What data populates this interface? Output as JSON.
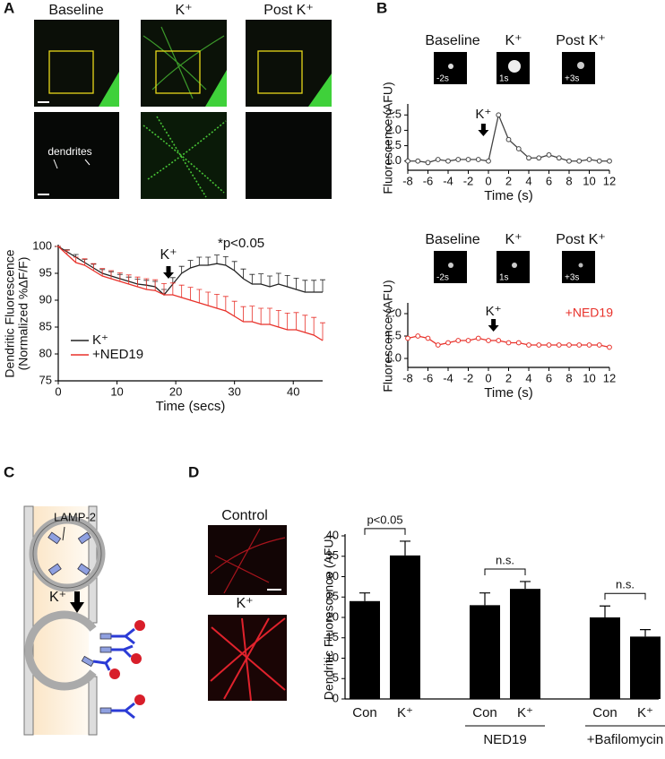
{
  "panels": [
    "A",
    "B",
    "C",
    "D"
  ],
  "panel_a_images": {
    "labels": [
      "Baseline",
      "K⁺",
      "Post K⁺"
    ],
    "annotation": "dendrites"
  },
  "panel_b_images": [
    {
      "labels": [
        "Baseline",
        "K⁺",
        "Post K⁺"
      ],
      "times": [
        "-2s",
        "1s",
        "+3s"
      ]
    },
    {
      "labels": [
        "Baseline",
        "K⁺",
        "Post K⁺"
      ],
      "times": [
        "-2s",
        "1s",
        "+3s"
      ]
    }
  ],
  "panel_c": {
    "labels": [
      "LAMP-2",
      "K⁺"
    ]
  },
  "panel_d_images": {
    "labels": [
      "Control",
      "K⁺"
    ]
  },
  "chart_data": [
    {
      "type": "line",
      "xlabel": "Time (secs)",
      "ylabel": [
        "Dendritic Fluorescence",
        "(Normalized %ΔF/F)"
      ],
      "x": [
        0,
        1.5,
        3,
        4.5,
        6,
        7.5,
        9,
        10.5,
        12,
        13.5,
        15,
        16.5,
        18,
        19.5,
        21,
        22.5,
        24,
        25.5,
        27,
        28.5,
        30,
        31.5,
        33,
        34.5,
        36,
        37.5,
        39,
        40.5,
        42,
        43.5,
        45
      ],
      "series": [
        {
          "name": "K⁺",
          "color": "#222222",
          "values": [
            100,
            99,
            98,
            97,
            96,
            95,
            94.5,
            94,
            93.5,
            93,
            92.8,
            92.5,
            91,
            93,
            95,
            96,
            96.5,
            96.5,
            96.8,
            96.5,
            95.5,
            94,
            93,
            93,
            92.5,
            93,
            92.5,
            92,
            91.5,
            91.5,
            91.5
          ],
          "errors": [
            0,
            0.4,
            0.5,
            0.6,
            0.7,
            0.7,
            0.8,
            0.8,
            0.8,
            0.9,
            0.9,
            1,
            1,
            1.2,
            1.3,
            1.4,
            1.5,
            1.5,
            1.6,
            1.6,
            1.7,
            1.8,
            1.8,
            1.9,
            2,
            2,
            2.1,
            2.1,
            2.2,
            2.2,
            2.3
          ]
        },
        {
          "name": "+NED19",
          "color": "#e8312a",
          "values": [
            100,
            98.5,
            97,
            96.5,
            95.5,
            94.5,
            94,
            93.5,
            93,
            92.5,
            92,
            91.8,
            91,
            91,
            90.5,
            90,
            89.5,
            89,
            88.5,
            88,
            87,
            86,
            86,
            85.5,
            85.5,
            85,
            84.5,
            84.5,
            84,
            83.5,
            82.5
          ],
          "errors": [
            0,
            0.8,
            1,
            1.2,
            1.3,
            1.4,
            1.5,
            1.6,
            1.7,
            1.8,
            2,
            2,
            2.1,
            2.2,
            2.3,
            2.4,
            2.5,
            2.5,
            2.6,
            2.7,
            2.8,
            2.8,
            2.9,
            3,
            3,
            3.1,
            3.1,
            3.2,
            3.2,
            3.3,
            3.3
          ]
        }
      ],
      "xlim": [
        0,
        45
      ],
      "xticks": [
        0,
        10,
        20,
        30,
        40
      ],
      "ylim": [
        75,
        100
      ],
      "yticks": [
        75,
        80,
        85,
        90,
        95,
        100
      ],
      "legend": "lower-left",
      "annotations": [
        "K⁺",
        "*p<0.05"
      ]
    },
    {
      "type": "line",
      "xlabel": "Time (s)",
      "ylabel": [
        "Fluorescence (AFU)"
      ],
      "x": [
        -8,
        -7,
        -6,
        -5,
        -4,
        -3,
        -2,
        -1,
        0,
        1,
        2,
        3,
        4,
        5,
        6,
        7,
        8,
        9,
        10,
        11,
        12
      ],
      "series": [
        {
          "color": "#444444",
          "values": [
            1.0,
            1.0,
            0.95,
            1.05,
            1.0,
            1.05,
            1.05,
            1.05,
            1.0,
            2.5,
            1.7,
            1.4,
            1.1,
            1.1,
            1.2,
            1.1,
            1.0,
            1.0,
            1.05,
            1.0,
            1.0
          ]
        }
      ],
      "marker": "circle",
      "xlim": [
        -8,
        12
      ],
      "xticks": [
        -8,
        -6,
        -4,
        -2,
        0,
        2,
        4,
        6,
        8,
        10,
        12
      ],
      "ylim": [
        0.7,
        2.8
      ],
      "yticks": [
        {
          "value": 1,
          "label": "1.0"
        },
        {
          "value": 1.5,
          "label": "1.5"
        },
        {
          "value": 2,
          "label": "2.0"
        },
        {
          "value": 2.5,
          "label": "2.5"
        }
      ],
      "annotations": [
        "K⁺"
      ]
    },
    {
      "type": "line",
      "xlabel": "Time (s)",
      "ylabel": [
        "Fluorescence (AFU)"
      ],
      "x": [
        -8,
        -7,
        -6,
        -5,
        -4,
        -3,
        -2,
        -1,
        0,
        1,
        2,
        3,
        4,
        5,
        6,
        7,
        8,
        9,
        10,
        11,
        12
      ],
      "series": [
        {
          "color": "#e8312a",
          "values": [
            1.45,
            1.5,
            1.45,
            1.3,
            1.35,
            1.4,
            1.4,
            1.45,
            1.4,
            1.4,
            1.35,
            1.35,
            1.3,
            1.3,
            1.3,
            1.3,
            1.3,
            1.3,
            1.3,
            1.3,
            1.25
          ]
        }
      ],
      "marker": "circle",
      "xlim": [
        -8,
        12
      ],
      "xticks": [
        -8,
        -6,
        -4,
        -2,
        0,
        2,
        4,
        6,
        8,
        10,
        12
      ],
      "ylim": [
        0.8,
        2.2
      ],
      "yticks": [
        {
          "value": 1,
          "label": "1.0"
        },
        {
          "value": 1.5,
          "label": "1.5"
        },
        {
          "value": 2,
          "label": "2.0"
        }
      ],
      "annotations": [
        "K⁺",
        "+NED19"
      ]
    },
    {
      "type": "bar",
      "ylabel": [
        "Dendritic Fluorescence (AFU)"
      ],
      "categories": [
        "Con",
        "K⁺",
        "Con",
        "K⁺",
        "Con",
        "K⁺"
      ],
      "values": [
        24,
        35.2,
        23,
        27,
        20,
        15.3
      ],
      "errors": [
        2,
        3.5,
        3,
        1.8,
        2.8,
        1.7
      ],
      "color": "#000000",
      "group_labels": [
        null,
        "NED19",
        "+Bafilomycin"
      ],
      "brackets": [
        {
          "label": "p<0.05",
          "from": 0,
          "to": 1
        },
        {
          "label": "n.s.",
          "from": 2,
          "to": 3
        },
        {
          "label": "n.s.",
          "from": 4,
          "to": 5
        }
      ],
      "ylim": [
        0,
        40
      ],
      "yticks": [
        0,
        5,
        10,
        15,
        20,
        25,
        30,
        35,
        40
      ]
    }
  ]
}
